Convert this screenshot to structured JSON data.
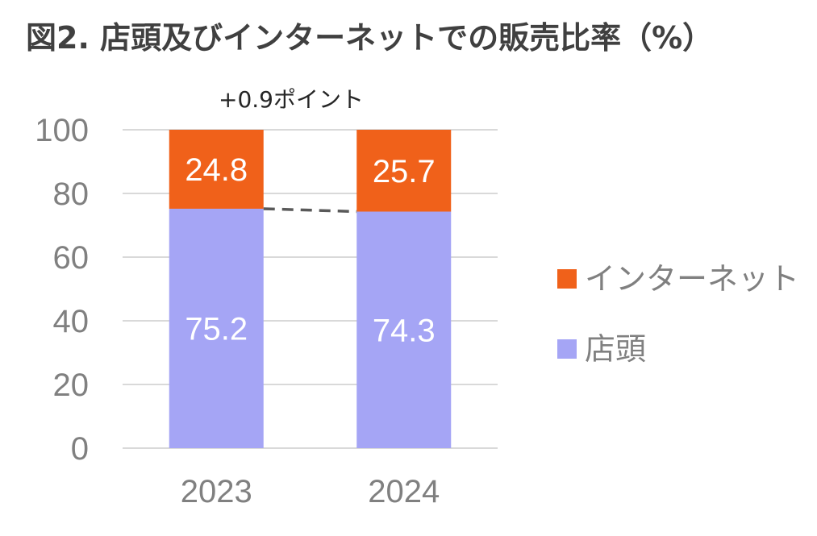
{
  "chart_data": {
    "type": "bar",
    "stacked": true,
    "title": "図2. 店頭及びインターネットでの販売比率（%）",
    "categories": [
      "2023",
      "2024"
    ],
    "series": [
      {
        "name": "店頭",
        "values": [
          75.2,
          74.3
        ],
        "color": "#a5a5f5"
      },
      {
        "name": "インターネット",
        "values": [
          24.8,
          25.7
        ],
        "color": "#f0611a"
      }
    ],
    "ylim": [
      0,
      100
    ],
    "yticks": [
      0,
      20,
      40,
      60,
      80,
      100
    ],
    "grid": true,
    "legend": "right",
    "annotation": "+0.9ポイント",
    "connector_color": "#595959"
  }
}
